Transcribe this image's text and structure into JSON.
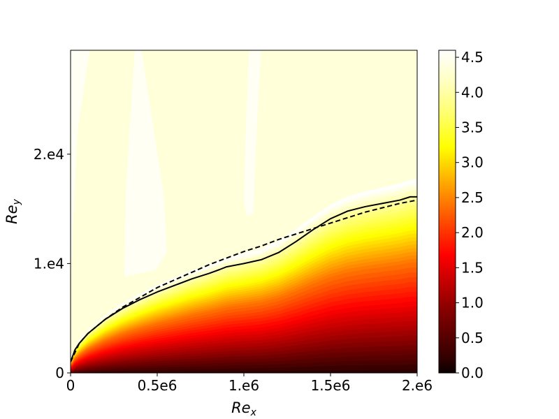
{
  "chart_data": {
    "type": "heatmap",
    "title": "",
    "xlabel": "Re",
    "xlabel_sub": "x",
    "ylabel": "Re",
    "ylabel_sub": "y",
    "xlim": [
      0,
      2000000
    ],
    "ylim": [
      0,
      29500
    ],
    "x_ticks": [
      {
        "value": 0,
        "label": "0"
      },
      {
        "value": 500000,
        "label": "0.5e6"
      },
      {
        "value": 1000000,
        "label": "1.e6"
      },
      {
        "value": 1500000,
        "label": "1.5e6"
      },
      {
        "value": 2000000,
        "label": "2.e6"
      }
    ],
    "y_ticks": [
      {
        "value": 0,
        "label": "0"
      },
      {
        "value": 10000,
        "label": "1.e4"
      },
      {
        "value": 20000,
        "label": "2.e4"
      }
    ],
    "colorbar": {
      "colormap": "hot",
      "range": [
        0,
        4.6
      ],
      "ticks": [
        {
          "value": 0.0,
          "label": "0.0"
        },
        {
          "value": 0.5,
          "label": "0.5"
        },
        {
          "value": 1.0,
          "label": "1.0"
        },
        {
          "value": 1.5,
          "label": "1.5"
        },
        {
          "value": 2.0,
          "label": "2.0"
        },
        {
          "value": 2.5,
          "label": "2.5"
        },
        {
          "value": 3.0,
          "label": "3.0"
        },
        {
          "value": 3.5,
          "label": "3.5"
        },
        {
          "value": 4.0,
          "label": "4.0"
        },
        {
          "value": 4.5,
          "label": "4.5"
        }
      ]
    },
    "series": [
      {
        "style": "solid",
        "color": "#000000",
        "points": [
          [
            0,
            1000
          ],
          [
            25000,
            2100
          ],
          [
            50000,
            2700
          ],
          [
            100000,
            3600
          ],
          [
            200000,
            4900
          ],
          [
            300000,
            5900
          ],
          [
            400000,
            6700
          ],
          [
            500000,
            7400
          ],
          [
            600000,
            8000
          ],
          [
            700000,
            8600
          ],
          [
            800000,
            9100
          ],
          [
            860000,
            9450
          ],
          [
            900000,
            9700
          ],
          [
            1000000,
            10000
          ],
          [
            1100000,
            10350
          ],
          [
            1200000,
            11000
          ],
          [
            1300000,
            12000
          ],
          [
            1400000,
            13100
          ],
          [
            1500000,
            14100
          ],
          [
            1600000,
            14800
          ],
          [
            1700000,
            15200
          ],
          [
            1800000,
            15500
          ],
          [
            1900000,
            15800
          ],
          [
            1960000,
            16100
          ],
          [
            2000000,
            16100
          ]
        ]
      },
      {
        "style": "dashed",
        "color": "#000000",
        "points": [
          [
            0,
            1000
          ],
          [
            50000,
            2700
          ],
          [
            100000,
            3600
          ],
          [
            200000,
            4900
          ],
          [
            300000,
            6000
          ],
          [
            400000,
            6900
          ],
          [
            500000,
            7800
          ],
          [
            600000,
            8500
          ],
          [
            700000,
            9200
          ],
          [
            800000,
            9900
          ],
          [
            900000,
            10500
          ],
          [
            1000000,
            11100
          ],
          [
            1100000,
            11600
          ],
          [
            1200000,
            12200
          ],
          [
            1300000,
            12700
          ],
          [
            1400000,
            13200
          ],
          [
            1500000,
            13700
          ],
          [
            1600000,
            14200
          ],
          [
            1700000,
            14700
          ],
          [
            1800000,
            15100
          ],
          [
            1900000,
            15500
          ],
          [
            2000000,
            15800
          ]
        ]
      }
    ],
    "field_features": [
      {
        "name": "max-region-left",
        "value": 4.55,
        "points": [
          [
            0,
            29500
          ],
          [
            110000,
            29500
          ],
          [
            40000,
            22000
          ],
          [
            10000,
            12000
          ],
          [
            0,
            8000
          ]
        ]
      },
      {
        "name": "max-region-mid",
        "value": 4.55,
        "points": [
          [
            370000,
            29500
          ],
          [
            410000,
            29500
          ],
          [
            540000,
            16000
          ],
          [
            555000,
            11000
          ],
          [
            490000,
            9400
          ],
          [
            310000,
            8800
          ],
          [
            320000,
            17000
          ]
        ]
      },
      {
        "name": "max-region-right",
        "value": 4.55,
        "points": [
          [
            1030000,
            29500
          ],
          [
            1100000,
            29500
          ],
          [
            1070000,
            21000
          ],
          [
            1055000,
            14600
          ],
          [
            1020000,
            14300
          ],
          [
            1000000,
            15500
          ],
          [
            1010000,
            22000
          ]
        ]
      }
    ]
  }
}
